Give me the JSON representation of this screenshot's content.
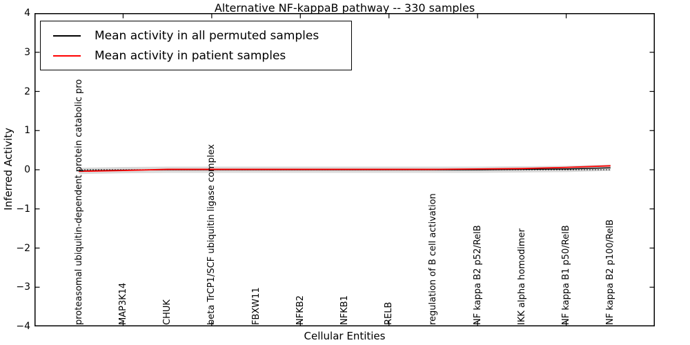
{
  "chart_data": {
    "type": "line",
    "title": "Alternative NF-kappaB pathway -- 330 samples",
    "xlabel": "Cellular Entities",
    "ylabel": "Inferred Activity",
    "xlim": [
      -1,
      13
    ],
    "ylim": [
      -4,
      4
    ],
    "grid": false,
    "legend_position": "upper left",
    "yticks": [
      4,
      3,
      2,
      1,
      0,
      -1,
      -2,
      -3,
      -4
    ],
    "ytick_labels": [
      "4",
      "3",
      "2",
      "1",
      "0",
      "−1",
      "−2",
      "−3",
      "−4"
    ],
    "xtick_positions": [
      1,
      3,
      5,
      7,
      9,
      11
    ],
    "categories": [
      "proteasomal ubiquitin-dependent protein catabolic pro",
      "MAP3K14",
      "CHUK",
      "beta TrCP1/SCF ubiquitin ligase complex",
      "FBXW11",
      "NFKB2",
      "NFKB1",
      "RELB",
      "regulation of B cell activation",
      "NF kappa B2 p52/RelB",
      "IKK alpha homodimer",
      "NF kappa B1 p50/RelB",
      "NF kappa B2 p100/RelB"
    ],
    "series": [
      {
        "name": "Mean activity in all permuted samples",
        "color": "#000000",
        "style": "solid",
        "values": [
          -0.03,
          -0.01,
          0,
          0,
          0,
          0,
          0,
          0,
          0,
          0,
          0.01,
          0.02,
          0.05
        ]
      },
      {
        "name": "Mean activity in patient samples",
        "color": "#ff0000",
        "style": "solid",
        "values": [
          -0.04,
          -0.02,
          0.01,
          0.01,
          0.01,
          0.01,
          0.01,
          0.01,
          0.01,
          0.02,
          0.03,
          0.06,
          0.1
        ]
      }
    ],
    "reference_line": {
      "y": 0,
      "color": "#000000",
      "style": "dotted"
    },
    "band": {
      "around_series": 0,
      "half_width": 0.08,
      "color": "#d9d9d9"
    }
  }
}
